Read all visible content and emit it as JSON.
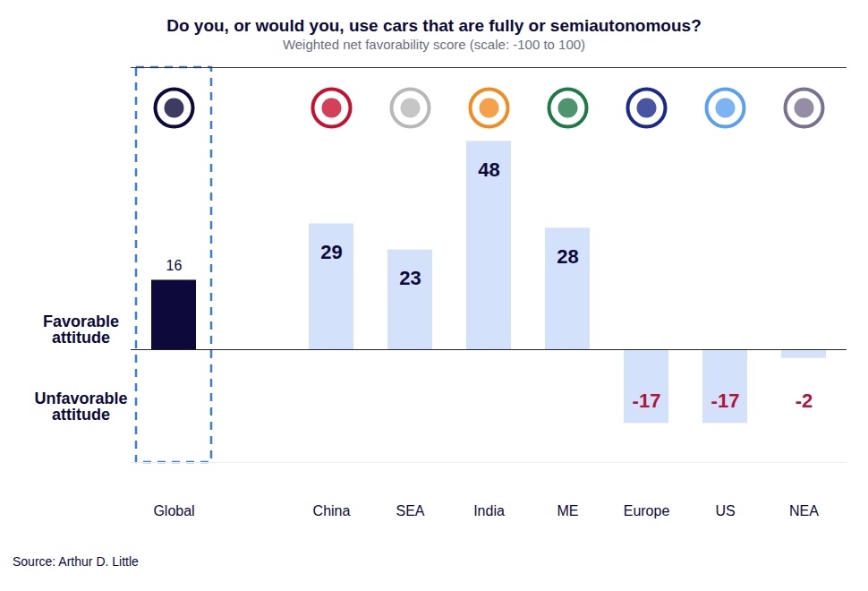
{
  "chart_data": {
    "type": "bar",
    "title": "Do you, or would you, use cars that are fully or semiautonomous?",
    "subtitle": "Weighted net favorability score (scale: -100 to 100)",
    "categories": [
      "Global",
      "China",
      "SEA",
      "India",
      "ME",
      "Europe",
      "US",
      "NEA"
    ],
    "values": [
      16,
      29,
      23,
      48,
      28,
      -17,
      -17,
      -2
    ],
    "colors": [
      "#0d0a3b",
      "#d4e1fb",
      "#d4e1fb",
      "#d4e1fb",
      "#d4e1fb",
      "#d4e1fb",
      "#d4e1fb",
      "#d4e1fb"
    ],
    "ylim": [
      -26,
      65
    ],
    "yticks": [],
    "grid": false,
    "tick_labels": "x",
    "data_labels": true,
    "annotations": [
      "Favorable attitude",
      "Unfavorable attitude"
    ],
    "source": "Source: Arthur D. Little"
  }
}
